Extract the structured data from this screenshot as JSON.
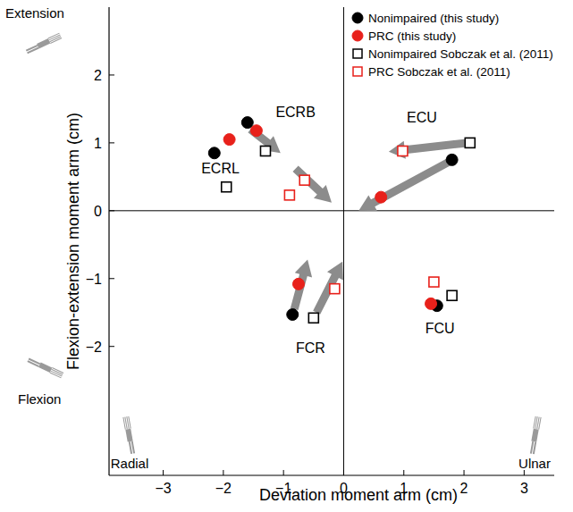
{
  "chart_data": {
    "type": "scatter",
    "xlabel": "Deviation moment arm (cm)",
    "ylabel": "Flexion-extension moment arm (cm)",
    "xlim": [
      -3.9,
      3.5
    ],
    "ylim": [
      -3.9,
      3.0
    ],
    "xticks": [
      {
        "value": -3,
        "label": "−3"
      },
      {
        "value": -2,
        "label": "−2"
      },
      {
        "value": -1,
        "label": "−1"
      },
      0,
      1,
      2,
      3
    ],
    "yticks": [
      {
        "value": -2,
        "label": "−2"
      },
      {
        "value": -1,
        "label": "−1"
      },
      0,
      1,
      2
    ],
    "legend": "upper right",
    "series": [
      {
        "name": "Nonimpaired (this study)",
        "color": "#000000",
        "marker": "circle",
        "x": [
          -2.15,
          -1.6,
          1.8,
          -0.85,
          1.55
        ],
        "y": [
          0.85,
          1.3,
          0.75,
          -1.53,
          -1.4
        ]
      },
      {
        "name": "PRC (this study)",
        "color": "#e8211b",
        "marker": "circle",
        "x": [
          -1.9,
          -1.45,
          0.62,
          -0.75,
          1.45
        ],
        "y": [
          1.05,
          1.18,
          0.2,
          -1.08,
          -1.37
        ]
      },
      {
        "name": "Nonimpaired Sobczak et al. (2011)",
        "color": "#000000",
        "marker": "open_square",
        "x": [
          -1.95,
          -1.3,
          2.1,
          -0.5,
          1.8
        ],
        "y": [
          0.35,
          0.88,
          1.0,
          -1.58,
          -1.25
        ]
      },
      {
        "name": "PRC Sobczak et al. (2011)",
        "color": "#e8211b",
        "marker": "open_square",
        "x": [
          -0.9,
          -0.65,
          0.98,
          -0.15,
          1.5
        ],
        "y": [
          0.23,
          0.45,
          0.88,
          -1.15,
          -1.05
        ]
      }
    ],
    "arrows": [
      {
        "x": [
          -1.55,
          -1.05
        ],
        "y": [
          1.2,
          0.85
        ]
      },
      {
        "x": [
          -0.8,
          -0.2
        ],
        "y": [
          0.62,
          0.12
        ]
      },
      {
        "x": [
          2.05,
          0.75
        ],
        "y": [
          1.0,
          0.87
        ]
      },
      {
        "x": [
          1.75,
          0.25
        ],
        "y": [
          0.72,
          0.0
        ]
      },
      {
        "x": [
          -0.82,
          -0.6
        ],
        "y": [
          -1.45,
          -0.72
        ]
      },
      {
        "x": [
          -0.45,
          -0.02
        ],
        "y": [
          -1.5,
          -0.75
        ]
      }
    ],
    "annotations": [
      {
        "text": "ECRL",
        "x": -2.05,
        "y": 0.55
      },
      {
        "text": "ECRB",
        "x": -0.8,
        "y": 1.38
      },
      {
        "text": "ECU",
        "x": 1.3,
        "y": 1.3
      },
      {
        "text": "FCR",
        "x": -0.55,
        "y": -2.1
      },
      {
        "text": "FCU",
        "x": 1.6,
        "y": -1.8
      }
    ],
    "direction_labels": {
      "extension": "Extension",
      "flexion": "Flexion",
      "radial": "Radial",
      "ulnar": "Ulnar"
    }
  }
}
